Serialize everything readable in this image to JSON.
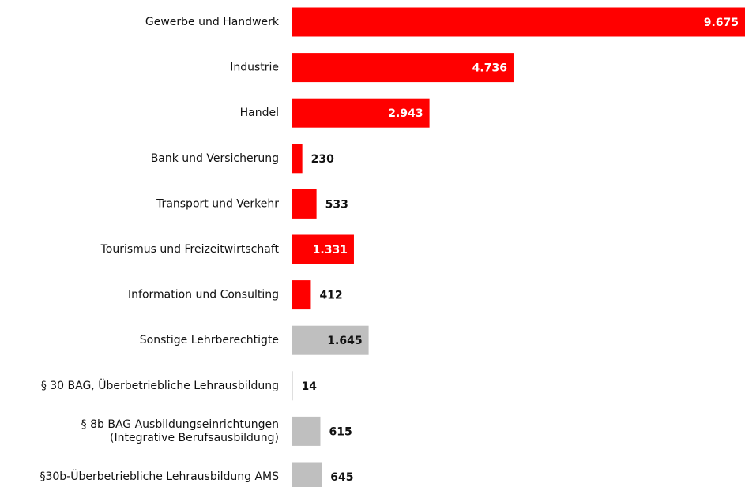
{
  "chart_data": {
    "type": "hbar",
    "categories": [
      "Gewerbe und Handwerk",
      "Industrie",
      "Handel",
      "Bank und Versicherung",
      "Transport und Verkehr",
      "Tourismus und Freizeitwirtschaft",
      "Information und Consulting",
      "Sonstige Lehrberechtigte",
      "§ 30 BAG, Überbetriebliche Lehrausbildung",
      [
        "§ 8b BAG Ausbildungseinrichtungen",
        "(Integrative Berufsausbildung)"
      ],
      "§30b-Überbetriebliche Lehrausbildung AMS"
    ],
    "values": [
      9675,
      4736,
      2943,
      230,
      533,
      1331,
      412,
      1645,
      14,
      615,
      645
    ],
    "value_labels": [
      "9.675",
      "4.736",
      "2.943",
      "230",
      "533",
      "1.331",
      "412",
      "1.645",
      "14",
      "615",
      "645"
    ],
    "colors": [
      "#ff0000",
      "#ff0000",
      "#ff0000",
      "#ff0000",
      "#ff0000",
      "#ff0000",
      "#ff0000",
      "#bfbfbf",
      "#bfbfbf",
      "#bfbfbf",
      "#bfbfbf"
    ]
  }
}
